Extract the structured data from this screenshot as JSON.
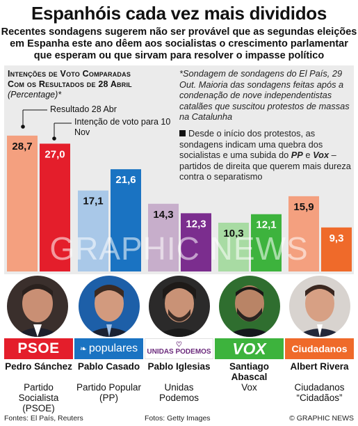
{
  "title": "Espanhóis cada vez mais divididos",
  "subtitle": "Recentes sondagens sugerem não ser provável que as segundas eleições em Espanha este ano dêem aos socialistas o crescimento parlamentar que esperam ou que sirvam para resolver o impasse político",
  "chart_heading_line1": "Intenções de Voto Comparadas",
  "chart_heading_line2": "Com os Resultados de 28 Abril",
  "chart_unit": "(Percentage)*",
  "legend": {
    "result_label": "Resultado 28 Abr",
    "intent_label": "Intenção de voto para 10 Nov"
  },
  "notes": {
    "survey": "*Sondagem de sondagens do El País, 29 Out. Maioria das sondagens feitas após a condenação de nove independentistas catalães que suscitou protestos de massas na Catalunha",
    "protests_pre": "Desde o início dos protestos, as sondagens indicam uma quebra dos socialistas e uma subida do ",
    "pp": "PP",
    "and": " e ",
    "vox": "Vox",
    "protests_post": " – partidos de direita que querem mais dureza contra o separatismo"
  },
  "watermark": "GRAPHIC NEWS",
  "chart_data": {
    "type": "bar",
    "categories": [
      "PSOE",
      "PP",
      "Unidas Podemos",
      "Vox",
      "Ciudadanos"
    ],
    "series": [
      {
        "name": "Resultado 28 Abr",
        "values": [
          28.7,
          17.1,
          14.3,
          10.3,
          15.9
        ],
        "labels": [
          "28,7",
          "17,1",
          "14,3",
          "10,3",
          "15,9"
        ]
      },
      {
        "name": "Intenção de voto para 10 Nov",
        "values": [
          27.0,
          21.6,
          12.3,
          12.1,
          9.3
        ],
        "labels": [
          "27,0",
          "21,6",
          "12,3",
          "12,1",
          "9,3"
        ]
      }
    ],
    "colors_result": [
      "#f4a07f",
      "#a9c8e8",
      "#c7aecb",
      "#a8dba3",
      "#f4a07f"
    ],
    "colors_intent": [
      "#e41e2b",
      "#1a73c2",
      "#7b2d8e",
      "#3db33d",
      "#ef6a2a"
    ],
    "ylim": [
      0,
      30
    ]
  },
  "candidates": [
    {
      "name": "Pedro Sánchez",
      "party": "Partido Socialista (PSOE)",
      "logo": "PSOE",
      "logo_color": "#e41e2b"
    },
    {
      "name": "Pablo Casado",
      "party": "Partido Popular (PP)",
      "logo": "populares",
      "logo_color": "#1a73c2"
    },
    {
      "name": "Pablo Iglesias",
      "party": "Unidas Podemos",
      "logo": "UNIDAS PODEMOS",
      "logo_color": "#ffffff"
    },
    {
      "name": "Santiago Abascal",
      "party": "Vox",
      "logo": "VOX",
      "logo_color": "#3db33d"
    },
    {
      "name": "Albert Rivera",
      "party": "Ciudadanos “Cidadãos”",
      "logo": "Ciudadanos",
      "logo_color": "#ef6a2a"
    }
  ],
  "footer": {
    "sources": "Fontes: El País, Reuters",
    "photos": "Fotos: Getty Images",
    "copyright": "© GRAPHIC NEWS"
  }
}
